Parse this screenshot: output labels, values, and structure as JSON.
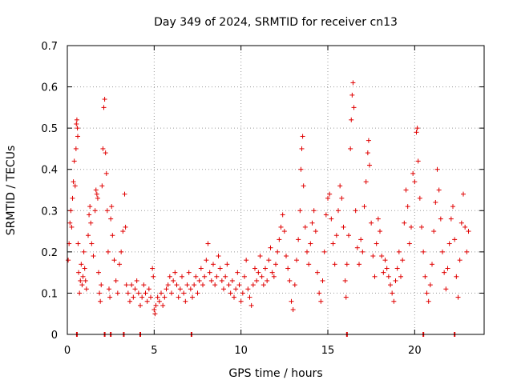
{
  "chart_data": {
    "type": "scatter",
    "title": "Day 349 of 2024, SRMTID for receiver cn13",
    "xlabel": "GPS time / hours",
    "ylabel": "SRMTID / TECUs",
    "xlim": [
      0,
      24
    ],
    "ylim": [
      0,
      0.7
    ],
    "xticks": [
      0,
      5,
      10,
      15,
      20
    ],
    "xtick_labels": [
      "0",
      "5",
      "10",
      "15",
      "20"
    ],
    "yticks": [
      0,
      0.1,
      0.2,
      0.3,
      0.4,
      0.5,
      0.6,
      0.7
    ],
    "ytick_labels": [
      "0",
      "0.1",
      "0.2",
      "0.3",
      "0.4",
      "0.5",
      "0.6",
      "0.7"
    ],
    "grid": true,
    "marker": "plus",
    "color": "#e00000",
    "series": [
      {
        "name": "SRMTID",
        "points": [
          [
            0.05,
            0.18
          ],
          [
            0.1,
            0.22
          ],
          [
            0.15,
            0.27
          ],
          [
            0.2,
            0.3
          ],
          [
            0.25,
            0.26
          ],
          [
            0.3,
            0.33
          ],
          [
            0.35,
            0.37
          ],
          [
            0.4,
            0.42
          ],
          [
            0.45,
            0.36
          ],
          [
            0.5,
            0.45
          ],
          [
            0.52,
            0.51
          ],
          [
            0.55,
            0.52
          ],
          [
            0.58,
            0.5
          ],
          [
            0.6,
            0.48
          ],
          [
            0.62,
            0.22
          ],
          [
            0.65,
            0.15
          ],
          [
            0.7,
            0.1
          ],
          [
            0.75,
            0.13
          ],
          [
            0.8,
            0.17
          ],
          [
            0.85,
            0.12
          ],
          [
            0.9,
            0.14
          ],
          [
            0.95,
            0.2
          ],
          [
            1.0,
            0.16
          ],
          [
            1.05,
            0.13
          ],
          [
            1.1,
            0.11
          ],
          [
            1.2,
            0.24
          ],
          [
            1.25,
            0.29
          ],
          [
            1.3,
            0.31
          ],
          [
            1.35,
            0.27
          ],
          [
            1.4,
            0.22
          ],
          [
            1.5,
            0.19
          ],
          [
            1.6,
            0.3
          ],
          [
            1.65,
            0.35
          ],
          [
            1.7,
            0.34
          ],
          [
            1.75,
            0.33
          ],
          [
            1.8,
            0.15
          ],
          [
            1.85,
            0.1
          ],
          [
            1.9,
            0.08
          ],
          [
            1.95,
            0.12
          ],
          [
            2.0,
            0.36
          ],
          [
            2.05,
            0.45
          ],
          [
            2.1,
            0.55
          ],
          [
            2.15,
            0.57
          ],
          [
            2.2,
            0.44
          ],
          [
            2.25,
            0.39
          ],
          [
            2.3,
            0.3
          ],
          [
            2.35,
            0.2
          ],
          [
            2.4,
            0.11
          ],
          [
            2.45,
            0.09
          ],
          [
            2.5,
            0.28
          ],
          [
            2.55,
            0.31
          ],
          [
            2.6,
            0.24
          ],
          [
            2.7,
            0.18
          ],
          [
            2.8,
            0.13
          ],
          [
            2.9,
            0.1
          ],
          [
            3.0,
            0.17
          ],
          [
            3.1,
            0.2
          ],
          [
            3.2,
            0.25
          ],
          [
            3.3,
            0.34
          ],
          [
            3.35,
            0.26
          ],
          [
            3.4,
            0.12
          ],
          [
            3.5,
            0.1
          ],
          [
            3.6,
            0.08
          ],
          [
            3.7,
            0.12
          ],
          [
            3.8,
            0.09
          ],
          [
            3.9,
            0.11
          ],
          [
            4.0,
            0.13
          ],
          [
            4.1,
            0.1
          ],
          [
            4.2,
            0.07
          ],
          [
            4.3,
            0.09
          ],
          [
            4.4,
            0.12
          ],
          [
            4.5,
            0.1
          ],
          [
            4.6,
            0.08
          ],
          [
            4.7,
            0.11
          ],
          [
            4.8,
            0.09
          ],
          [
            4.9,
            0.16
          ],
          [
            4.95,
            0.14
          ],
          [
            5.0,
            0.06
          ],
          [
            5.05,
            0.05
          ],
          [
            5.1,
            0.07
          ],
          [
            5.2,
            0.09
          ],
          [
            5.3,
            0.08
          ],
          [
            5.4,
            0.1
          ],
          [
            5.5,
            0.07
          ],
          [
            5.6,
            0.09
          ],
          [
            5.7,
            0.11
          ],
          [
            5.8,
            0.12
          ],
          [
            5.9,
            0.14
          ],
          [
            6.0,
            0.1
          ],
          [
            6.1,
            0.13
          ],
          [
            6.2,
            0.15
          ],
          [
            6.3,
            0.12
          ],
          [
            6.4,
            0.09
          ],
          [
            6.5,
            0.11
          ],
          [
            6.6,
            0.14
          ],
          [
            6.7,
            0.1
          ],
          [
            6.8,
            0.08
          ],
          [
            6.9,
            0.12
          ],
          [
            7.0,
            0.15
          ],
          [
            7.1,
            0.11
          ],
          [
            7.2,
            0.09
          ],
          [
            7.3,
            0.12
          ],
          [
            7.4,
            0.14
          ],
          [
            7.5,
            0.1
          ],
          [
            7.6,
            0.13
          ],
          [
            7.7,
            0.16
          ],
          [
            7.8,
            0.12
          ],
          [
            7.9,
            0.14
          ],
          [
            8.0,
            0.18
          ],
          [
            8.1,
            0.22
          ],
          [
            8.2,
            0.15
          ],
          [
            8.3,
            0.13
          ],
          [
            8.4,
            0.17
          ],
          [
            8.5,
            0.12
          ],
          [
            8.6,
            0.14
          ],
          [
            8.7,
            0.19
          ],
          [
            8.8,
            0.16
          ],
          [
            8.9,
            0.13
          ],
          [
            9.0,
            0.11
          ],
          [
            9.1,
            0.14
          ],
          [
            9.2,
            0.17
          ],
          [
            9.3,
            0.12
          ],
          [
            9.4,
            0.1
          ],
          [
            9.5,
            0.13
          ],
          [
            9.6,
            0.09
          ],
          [
            9.7,
            0.11
          ],
          [
            9.8,
            0.15
          ],
          [
            9.9,
            0.12
          ],
          [
            10.0,
            0.08
          ],
          [
            10.1,
            0.1
          ],
          [
            10.2,
            0.14
          ],
          [
            10.3,
            0.18
          ],
          [
            10.4,
            0.11
          ],
          [
            10.5,
            0.09
          ],
          [
            10.6,
            0.07
          ],
          [
            10.7,
            0.12
          ],
          [
            10.8,
            0.16
          ],
          [
            10.9,
            0.13
          ],
          [
            11.0,
            0.15
          ],
          [
            11.1,
            0.19
          ],
          [
            11.2,
            0.14
          ],
          [
            11.3,
            0.12
          ],
          [
            11.4,
            0.16
          ],
          [
            11.5,
            0.13
          ],
          [
            11.6,
            0.18
          ],
          [
            11.7,
            0.21
          ],
          [
            11.8,
            0.15
          ],
          [
            11.9,
            0.14
          ],
          [
            12.0,
            0.17
          ],
          [
            12.1,
            0.2
          ],
          [
            12.2,
            0.23
          ],
          [
            12.3,
            0.26
          ],
          [
            12.4,
            0.29
          ],
          [
            12.5,
            0.25
          ],
          [
            12.6,
            0.19
          ],
          [
            12.7,
            0.16
          ],
          [
            12.8,
            0.13
          ],
          [
            12.9,
            0.08
          ],
          [
            13.0,
            0.06
          ],
          [
            13.1,
            0.12
          ],
          [
            13.2,
            0.18
          ],
          [
            13.3,
            0.23
          ],
          [
            13.4,
            0.3
          ],
          [
            13.45,
            0.4
          ],
          [
            13.5,
            0.45
          ],
          [
            13.55,
            0.48
          ],
          [
            13.6,
            0.36
          ],
          [
            13.7,
            0.26
          ],
          [
            13.8,
            0.2
          ],
          [
            13.9,
            0.17
          ],
          [
            14.0,
            0.22
          ],
          [
            14.1,
            0.27
          ],
          [
            14.2,
            0.3
          ],
          [
            14.3,
            0.25
          ],
          [
            14.4,
            0.15
          ],
          [
            14.5,
            0.1
          ],
          [
            14.6,
            0.08
          ],
          [
            14.7,
            0.13
          ],
          [
            14.8,
            0.2
          ],
          [
            14.9,
            0.29
          ],
          [
            15.0,
            0.33
          ],
          [
            15.1,
            0.34
          ],
          [
            15.2,
            0.28
          ],
          [
            15.3,
            0.22
          ],
          [
            15.4,
            0.17
          ],
          [
            15.5,
            0.24
          ],
          [
            15.6,
            0.3
          ],
          [
            15.7,
            0.36
          ],
          [
            15.8,
            0.33
          ],
          [
            15.9,
            0.26
          ],
          [
            16.0,
            0.13
          ],
          [
            16.05,
            0.09
          ],
          [
            16.1,
            0.17
          ],
          [
            16.2,
            0.24
          ],
          [
            16.3,
            0.45
          ],
          [
            16.35,
            0.52
          ],
          [
            16.4,
            0.58
          ],
          [
            16.45,
            0.61
          ],
          [
            16.5,
            0.55
          ],
          [
            16.6,
            0.3
          ],
          [
            16.7,
            0.21
          ],
          [
            16.8,
            0.17
          ],
          [
            16.9,
            0.23
          ],
          [
            17.0,
            0.2
          ],
          [
            17.1,
            0.31
          ],
          [
            17.2,
            0.37
          ],
          [
            17.3,
            0.44
          ],
          [
            17.35,
            0.47
          ],
          [
            17.4,
            0.41
          ],
          [
            17.5,
            0.27
          ],
          [
            17.6,
            0.19
          ],
          [
            17.7,
            0.14
          ],
          [
            17.8,
            0.22
          ],
          [
            17.9,
            0.28
          ],
          [
            18.0,
            0.25
          ],
          [
            18.1,
            0.19
          ],
          [
            18.2,
            0.15
          ],
          [
            18.3,
            0.18
          ],
          [
            18.4,
            0.16
          ],
          [
            18.5,
            0.14
          ],
          [
            18.6,
            0.12
          ],
          [
            18.7,
            0.1
          ],
          [
            18.8,
            0.08
          ],
          [
            18.9,
            0.13
          ],
          [
            19.0,
            0.16
          ],
          [
            19.1,
            0.2
          ],
          [
            19.2,
            0.14
          ],
          [
            19.3,
            0.18
          ],
          [
            19.4,
            0.27
          ],
          [
            19.5,
            0.35
          ],
          [
            19.6,
            0.31
          ],
          [
            19.7,
            0.22
          ],
          [
            19.8,
            0.26
          ],
          [
            19.9,
            0.39
          ],
          [
            20.0,
            0.37
          ],
          [
            20.1,
            0.49
          ],
          [
            20.15,
            0.5
          ],
          [
            20.2,
            0.42
          ],
          [
            20.3,
            0.33
          ],
          [
            20.4,
            0.26
          ],
          [
            20.5,
            0.2
          ],
          [
            20.6,
            0.14
          ],
          [
            20.7,
            0.1
          ],
          [
            20.8,
            0.08
          ],
          [
            20.9,
            0.12
          ],
          [
            21.0,
            0.17
          ],
          [
            21.1,
            0.25
          ],
          [
            21.2,
            0.32
          ],
          [
            21.3,
            0.4
          ],
          [
            21.4,
            0.35
          ],
          [
            21.5,
            0.28
          ],
          [
            21.6,
            0.2
          ],
          [
            21.7,
            0.15
          ],
          [
            21.8,
            0.11
          ],
          [
            21.9,
            0.16
          ],
          [
            22.0,
            0.22
          ],
          [
            22.1,
            0.28
          ],
          [
            22.2,
            0.31
          ],
          [
            22.3,
            0.23
          ],
          [
            22.4,
            0.14
          ],
          [
            22.5,
            0.09
          ],
          [
            22.6,
            0.18
          ],
          [
            22.7,
            0.27
          ],
          [
            22.8,
            0.34
          ],
          [
            22.9,
            0.26
          ],
          [
            23.0,
            0.2
          ],
          [
            23.1,
            0.25
          ]
        ]
      }
    ],
    "zero_markers_x": [
      0.55,
      2.15,
      2.5,
      3.25,
      4.2,
      7.15,
      16.1,
      20.5,
      22.3
    ]
  }
}
